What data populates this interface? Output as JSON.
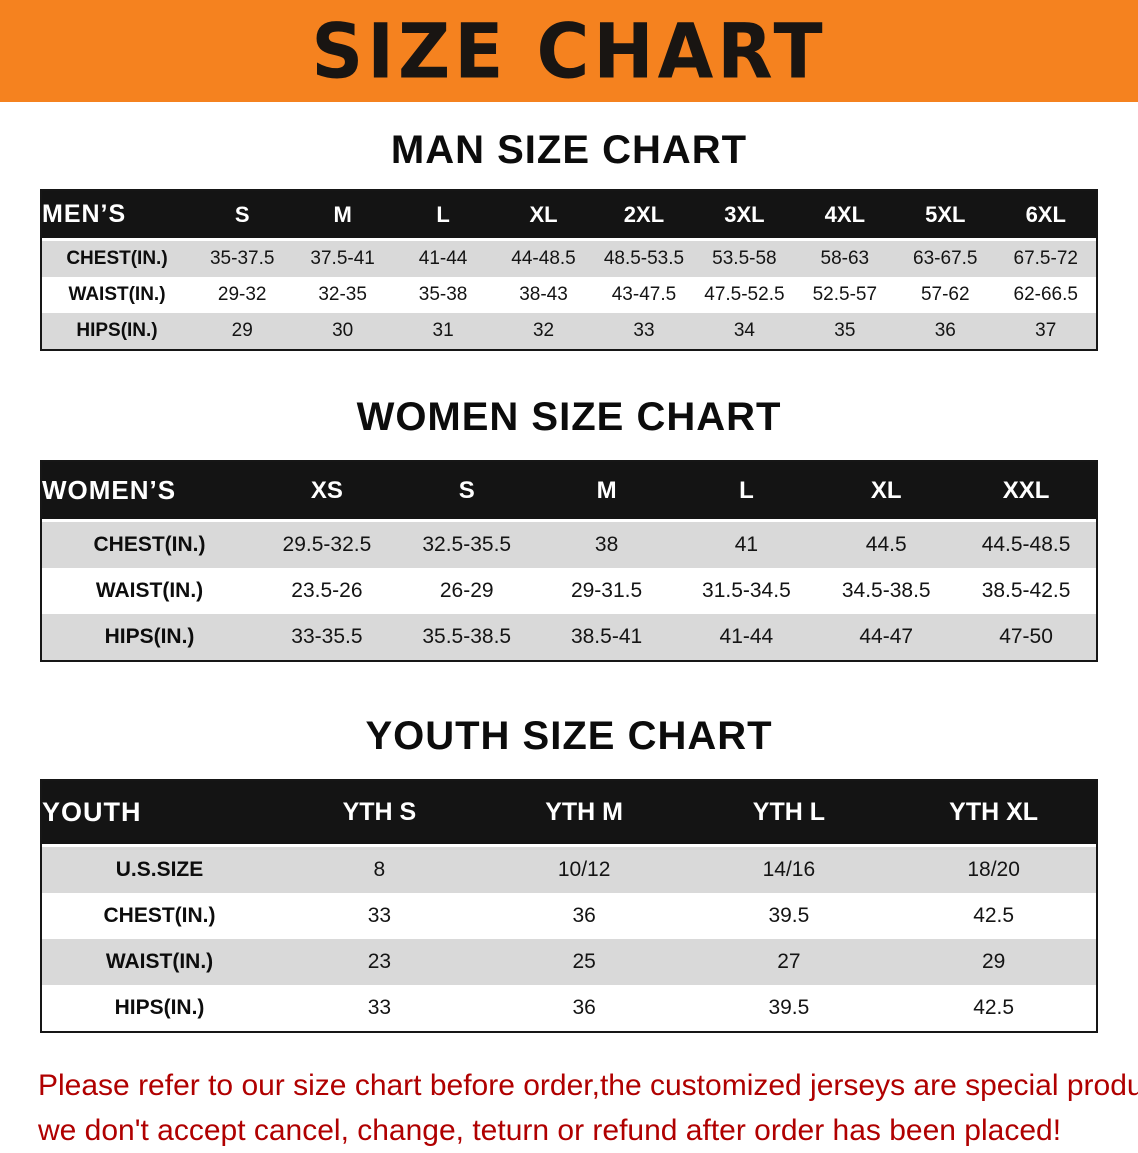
{
  "colors": {
    "banner-bg": "#f5821f",
    "header-bg": "#141414",
    "row-alt": "#d9d9d9",
    "footer-color": "#b00000"
  },
  "banner": {
    "title": "SIZE CHART"
  },
  "men": {
    "heading": "MAN SIZE CHART",
    "table": {
      "corner": "MEN’S",
      "sizes": [
        "S",
        "M",
        "L",
        "XL",
        "2XL",
        "3XL",
        "4XL",
        "5XL",
        "6XL"
      ],
      "rows": [
        {
          "label": "CHEST(IN.)",
          "values": [
            "35-37.5",
            "37.5-41",
            "41-44",
            "44-48.5",
            "48.5-53.5",
            "53.5-58",
            "58-63",
            "63-67.5",
            "67.5-72"
          ]
        },
        {
          "label": "WAIST(IN.)",
          "values": [
            "29-32",
            "32-35",
            "35-38",
            "38-43",
            "43-47.5",
            "47.5-52.5",
            "52.5-57",
            "57-62",
            "62-66.5"
          ]
        },
        {
          "label": "HIPS(IN.)",
          "values": [
            "29",
            "30",
            "31",
            "32",
            "33",
            "34",
            "35",
            "36",
            "37"
          ]
        }
      ]
    }
  },
  "women": {
    "heading": "WOMEN SIZE CHART",
    "table": {
      "corner": "WOMEN’S",
      "sizes": [
        "XS",
        "S",
        "M",
        "L",
        "XL",
        "XXL"
      ],
      "rows": [
        {
          "label": "CHEST(IN.)",
          "values": [
            "29.5-32.5",
            "32.5-35.5",
            "38",
            "41",
            "44.5",
            "44.5-48.5"
          ]
        },
        {
          "label": "WAIST(IN.)",
          "values": [
            "23.5-26",
            "26-29",
            "29-31.5",
            "31.5-34.5",
            "34.5-38.5",
            "38.5-42.5"
          ]
        },
        {
          "label": "HIPS(IN.)",
          "values": [
            "33-35.5",
            "35.5-38.5",
            "38.5-41",
            "41-44",
            "44-47",
            "47-50"
          ]
        }
      ]
    }
  },
  "youth": {
    "heading": "YOUTH SIZE CHART",
    "table": {
      "corner": "YOUTH",
      "sizes": [
        "YTH S",
        "YTH M",
        "YTH L",
        "YTH XL"
      ],
      "rows": [
        {
          "label": "U.S.SIZE",
          "values": [
            "8",
            "10/12",
            "14/16",
            "18/20"
          ]
        },
        {
          "label": "CHEST(IN.)",
          "values": [
            "33",
            "36",
            "39.5",
            "42.5"
          ]
        },
        {
          "label": "WAIST(IN.)",
          "values": [
            "23",
            "25",
            "27",
            "29"
          ]
        },
        {
          "label": "HIPS(IN.)",
          "values": [
            "33",
            "36",
            "39.5",
            "42.5"
          ]
        }
      ]
    }
  },
  "footer": {
    "lines": [
      "Please refer to our size chart before order,the customized jerseys are special products,",
      "we don't accept cancel, change, teturn or refund after order has been placed!"
    ]
  }
}
